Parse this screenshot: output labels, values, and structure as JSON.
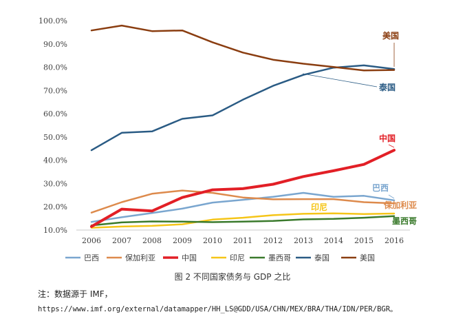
{
  "chart_data": {
    "type": "line",
    "x": [
      "2006",
      "2007",
      "2008",
      "2009",
      "2010",
      "2011",
      "2012",
      "2013",
      "2014",
      "2015",
      "2016"
    ],
    "y_ticks": [
      "10.0%",
      "20.0%",
      "30.0%",
      "40.0%",
      "50.0%",
      "60.0%",
      "70.0%",
      "80.0%",
      "90.0%",
      "100.0%"
    ],
    "ylim": [
      10,
      100
    ],
    "grid": false,
    "legend_position": "bottom",
    "series": [
      {
        "name": "巴西",
        "color": "#7aa6cf",
        "width": 2.5,
        "values": [
          13.5,
          15.5,
          17.3,
          19.2,
          21.8,
          23.0,
          24.3,
          26.0,
          24.3,
          24.7,
          22.8
        ]
      },
      {
        "name": "保加利亚",
        "color": "#dd8a4c",
        "width": 2.5,
        "values": [
          17.5,
          22.0,
          25.6,
          27.0,
          26.0,
          24.0,
          23.2,
          23.3,
          23.3,
          22.0,
          21.5
        ]
      },
      {
        "name": "中国",
        "color": "#e21f26",
        "width": 4,
        "values": [
          11.5,
          19.0,
          18.2,
          24.0,
          27.3,
          27.8,
          29.7,
          33.0,
          35.5,
          38.2,
          44.3
        ]
      },
      {
        "name": "印尼",
        "color": "#f5c518",
        "width": 2.5,
        "values": [
          11.0,
          11.5,
          11.8,
          12.5,
          14.5,
          15.3,
          16.4,
          17.0,
          17.2,
          16.9,
          17.1
        ]
      },
      {
        "name": "墨西哥",
        "color": "#3a7a2c",
        "width": 2.5,
        "values": [
          12.0,
          13.3,
          13.7,
          13.6,
          13.4,
          13.6,
          13.9,
          14.6,
          14.8,
          15.3,
          16.0
        ]
      },
      {
        "name": "泰国",
        "color": "#2a5b84",
        "width": 2.5,
        "values": [
          44.3,
          51.8,
          52.4,
          57.8,
          59.3,
          66.0,
          72.0,
          76.7,
          79.8,
          80.8,
          79.2
        ]
      },
      {
        "name": "美国",
        "color": "#8a3d10",
        "width": 2.5,
        "values": [
          95.8,
          97.9,
          95.5,
          95.8,
          90.7,
          86.3,
          83.2,
          81.5,
          80.1,
          78.6,
          78.8
        ]
      }
    ],
    "annotations": [
      {
        "text": "美国",
        "series": "美国",
        "color": "#8a3d10"
      },
      {
        "text": "泰国",
        "series": "泰国",
        "color": "#2a5b84"
      },
      {
        "text": "中国",
        "series": "中国",
        "color": "#e21f26"
      },
      {
        "text": "巴西",
        "series": "巴西",
        "color": "#7aa6cf"
      },
      {
        "text": "印尼",
        "series": "印尼",
        "color": "#f5c518"
      },
      {
        "text": "保加利亚",
        "series": "保加利亚",
        "color": "#dd8a4c"
      },
      {
        "text": "墨西哥",
        "series": "墨西哥",
        "color": "#3a7a2c"
      }
    ]
  },
  "caption": "图 2 不同国家债务与 GDP 之比",
  "note": "注：数据源于 IMF，",
  "source_url": "https://www.imf.org/external/datamapper/HH_LS@GDD/USA/CHN/MEX/BRA/THA/IDN/PER/BGR。"
}
